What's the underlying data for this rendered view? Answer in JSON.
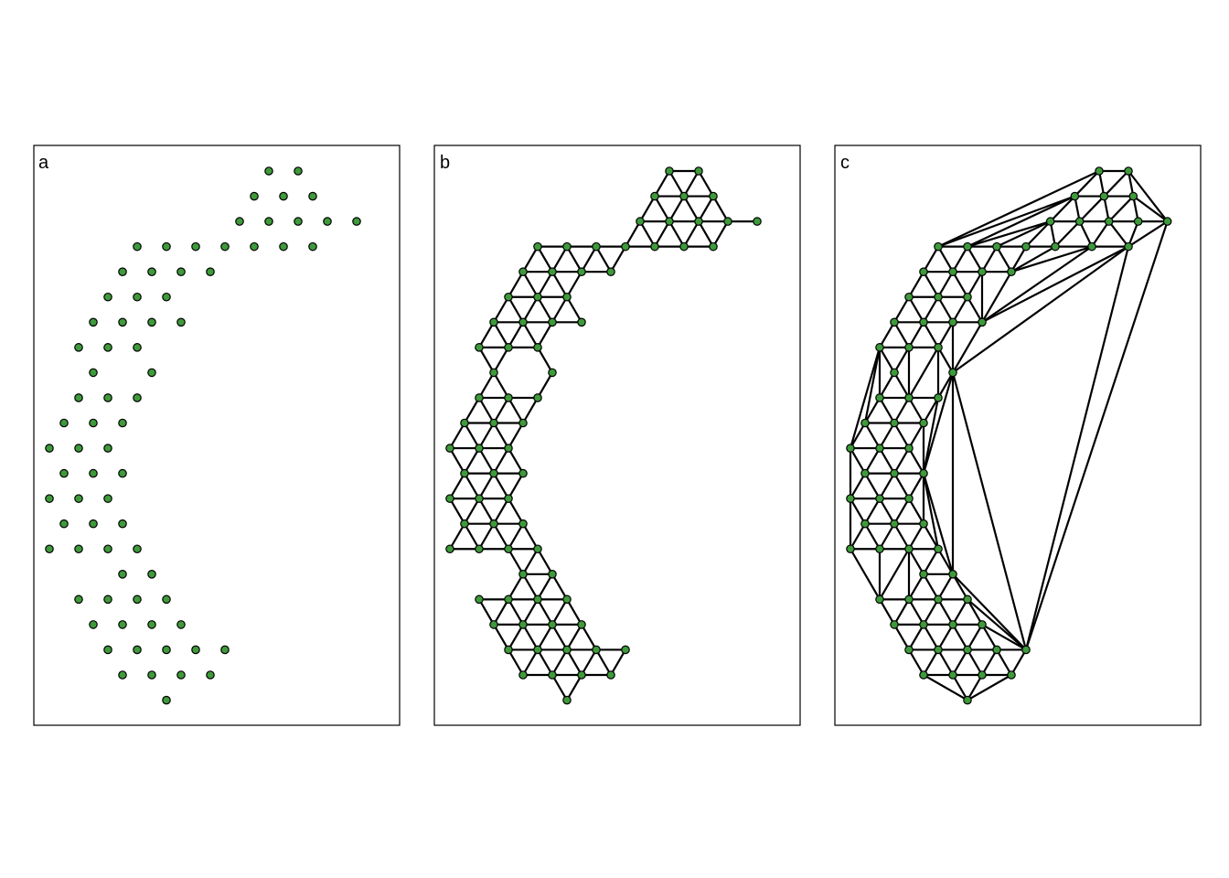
{
  "colors": {
    "node": "#3e9a3a",
    "edge": "#000000",
    "frame": "#000000"
  },
  "panels": [
    {
      "label": "a",
      "edges": "none"
    },
    {
      "label": "b",
      "edges": "neighbors"
    },
    {
      "label": "c",
      "edges": "triangulation"
    }
  ],
  "graph": {
    "points": [
      [
        9,
        0
      ],
      [
        11,
        0
      ],
      [
        8,
        1
      ],
      [
        10,
        1
      ],
      [
        12,
        1
      ],
      [
        7,
        2
      ],
      [
        9,
        2
      ],
      [
        11,
        2
      ],
      [
        13,
        2
      ],
      [
        15,
        2
      ],
      [
        0,
        3
      ],
      [
        2,
        3
      ],
      [
        4,
        3
      ],
      [
        6,
        3
      ],
      [
        8,
        3
      ],
      [
        10,
        3
      ],
      [
        12,
        3
      ],
      [
        -1,
        4
      ],
      [
        1,
        4
      ],
      [
        3,
        4
      ],
      [
        5,
        4
      ],
      [
        -2,
        5
      ],
      [
        0,
        5
      ],
      [
        2,
        5
      ],
      [
        -3,
        6
      ],
      [
        -1,
        6
      ],
      [
        1,
        6
      ],
      [
        3,
        6
      ],
      [
        -4,
        7
      ],
      [
        -2,
        7
      ],
      [
        0,
        7
      ],
      [
        -3,
        8
      ],
      [
        1,
        8
      ],
      [
        -4,
        9
      ],
      [
        -2,
        9
      ],
      [
        0,
        9
      ],
      [
        -5,
        10
      ],
      [
        -3,
        10
      ],
      [
        -1,
        10
      ],
      [
        -6,
        11
      ],
      [
        -4,
        11
      ],
      [
        -2,
        11
      ],
      [
        -5,
        12
      ],
      [
        -3,
        12
      ],
      [
        -1,
        12
      ],
      [
        -6,
        13
      ],
      [
        -4,
        13
      ],
      [
        -2,
        13
      ],
      [
        -5,
        14
      ],
      [
        -3,
        14
      ],
      [
        -1,
        14
      ],
      [
        -6,
        15
      ],
      [
        -4,
        15
      ],
      [
        -2,
        15
      ],
      [
        0,
        15
      ],
      [
        -1,
        16
      ],
      [
        1,
        16
      ],
      [
        -4,
        17
      ],
      [
        -2,
        17
      ],
      [
        0,
        17
      ],
      [
        2,
        17
      ],
      [
        -3,
        18
      ],
      [
        -1,
        18
      ],
      [
        1,
        18
      ],
      [
        3,
        18
      ],
      [
        -2,
        19
      ],
      [
        0,
        19
      ],
      [
        2,
        19
      ],
      [
        4,
        19
      ],
      [
        6,
        19
      ],
      [
        -1,
        20
      ],
      [
        1,
        20
      ],
      [
        3,
        20
      ],
      [
        5,
        20
      ],
      [
        2,
        21
      ]
    ]
  }
}
